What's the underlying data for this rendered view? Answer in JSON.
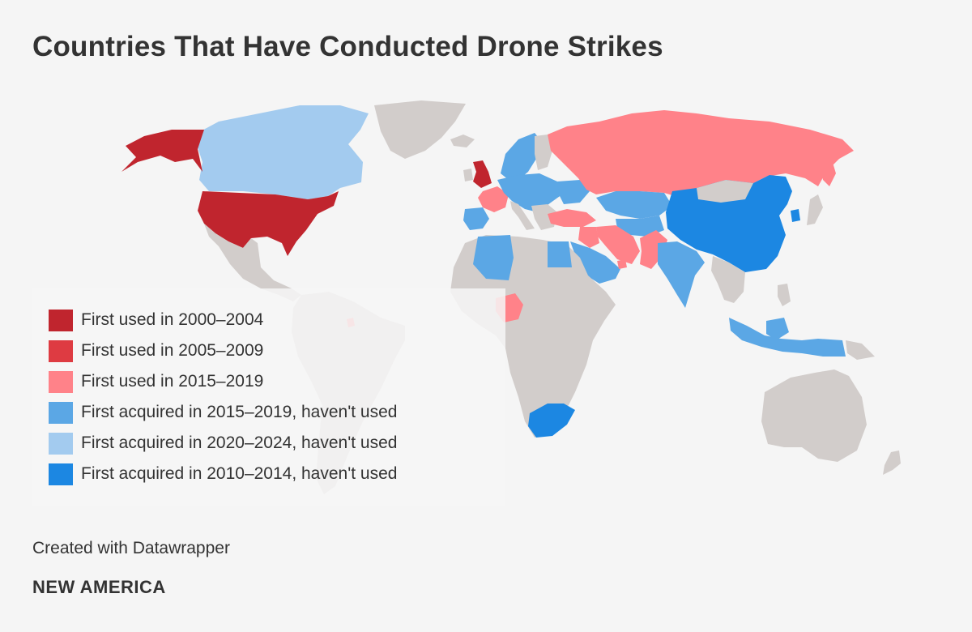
{
  "title": "Countries That Have Conducted Drone Strikes",
  "colors": {
    "background": "#f5f5f5",
    "land_default": "#d2cdcb",
    "used_2000_2004": "#c0252e",
    "used_2005_2009": "#de3b42",
    "used_2015_2019": "#ff8289",
    "acquired_2015_2019": "#5ba7e5",
    "acquired_2020_2024": "#a3cbef",
    "acquired_2010_2014": "#1c87e2"
  },
  "legend": [
    {
      "label": "First used in 2000–2004",
      "color": "#c0252e"
    },
    {
      "label": "First used in 2005–2009",
      "color": "#de3b42"
    },
    {
      "label": "First used in 2015–2019",
      "color": "#ff8289"
    },
    {
      "label": "First acquired in 2015–2019, haven't used",
      "color": "#5ba7e5"
    },
    {
      "label": "First acquired in 2020–2024, haven't used",
      "color": "#a3cbef"
    },
    {
      "label": "First acquired in 2010–2014, haven't used",
      "color": "#1c87e2"
    }
  ],
  "footer": {
    "credit": "Created with Datawrapper",
    "brand": "NEW AMERICA"
  }
}
